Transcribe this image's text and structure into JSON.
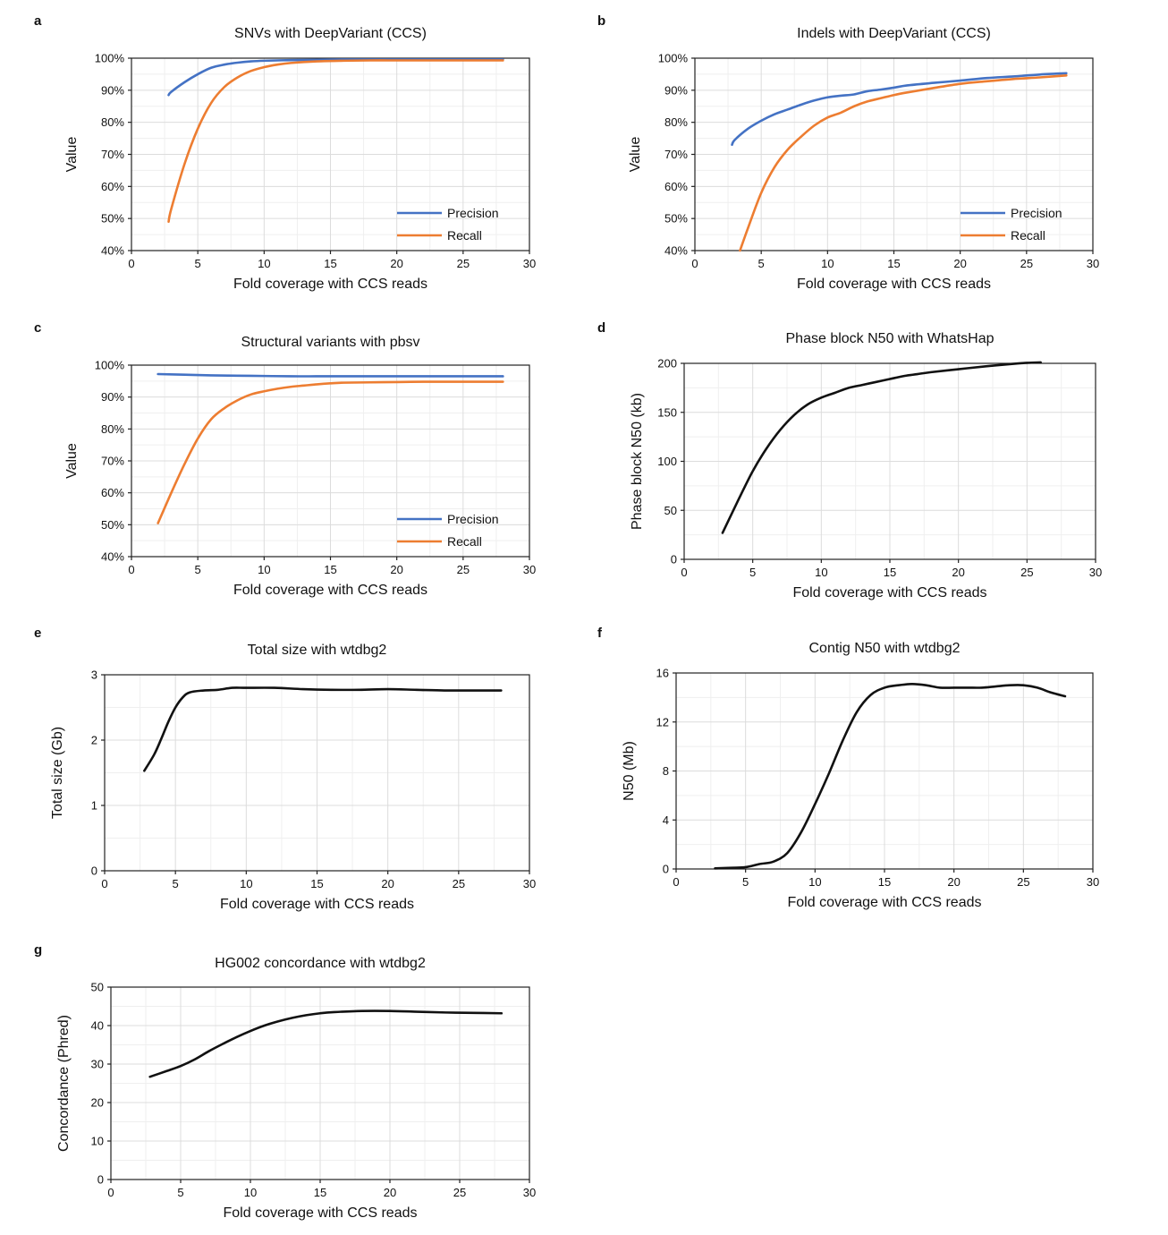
{
  "chart_data": [
    {
      "panel": "a",
      "type": "line",
      "title": "SNVs with DeepVariant (CCS)",
      "xlabel": "Fold coverage with CCS reads",
      "ylabel": "Value",
      "xlim": [
        0,
        30
      ],
      "ylim": [
        40,
        100
      ],
      "x_ticks": [
        0,
        5,
        10,
        15,
        20,
        25,
        30
      ],
      "y_ticks": [
        40,
        50,
        60,
        70,
        80,
        90,
        100
      ],
      "y_tick_labels": [
        "40%",
        "50%",
        "60%",
        "70%",
        "80%",
        "90%",
        "100%"
      ],
      "grid": true,
      "legend": "bottom-right",
      "series": [
        {
          "name": "Precision",
          "color": "#4472c4",
          "x": [
            2.8,
            3,
            4,
            5,
            6,
            7,
            8,
            9,
            10,
            12,
            14,
            16,
            18,
            20,
            22,
            24,
            26,
            28
          ],
          "y": [
            88.5,
            89.5,
            92.5,
            95,
            97,
            98,
            98.6,
            99.0,
            99.2,
            99.4,
            99.5,
            99.6,
            99.6,
            99.6,
            99.6,
            99.6,
            99.6,
            99.6
          ]
        },
        {
          "name": "Recall",
          "color": "#ed7d31",
          "x": [
            2.8,
            3,
            4,
            5,
            6,
            7,
            8,
            9,
            10,
            11,
            12,
            14,
            16,
            18,
            20,
            22,
            24,
            26,
            28
          ],
          "y": [
            49,
            53,
            67,
            78,
            86,
            91,
            94,
            96,
            97.2,
            98,
            98.5,
            99,
            99.2,
            99.3,
            99.3,
            99.3,
            99.3,
            99.3,
            99.3
          ]
        }
      ]
    },
    {
      "panel": "b",
      "type": "line",
      "title": "Indels with DeepVariant (CCS)",
      "xlabel": "Fold coverage with CCS reads",
      "ylabel": "Value",
      "xlim": [
        0,
        30
      ],
      "ylim": [
        40,
        100
      ],
      "x_ticks": [
        0,
        5,
        10,
        15,
        20,
        25,
        30
      ],
      "y_ticks": [
        40,
        50,
        60,
        70,
        80,
        90,
        100
      ],
      "y_tick_labels": [
        "40%",
        "50%",
        "60%",
        "70%",
        "80%",
        "90%",
        "100%"
      ],
      "grid": true,
      "legend": "bottom-right",
      "series": [
        {
          "name": "Precision",
          "color": "#4472c4",
          "x": [
            2.8,
            3,
            4,
            5,
            6,
            7,
            8,
            9,
            10,
            11,
            12,
            13,
            14,
            15,
            16,
            18,
            20,
            22,
            24,
            26,
            28
          ],
          "y": [
            73,
            74.5,
            78,
            80.5,
            82.5,
            84,
            85.5,
            86.8,
            87.8,
            88.3,
            88.7,
            89.7,
            90.2,
            90.8,
            91.5,
            92.3,
            93,
            93.8,
            94.3,
            94.9,
            95.3
          ]
        },
        {
          "name": "Recall",
          "color": "#ed7d31",
          "x": [
            3.4,
            4,
            5,
            6,
            7,
            8,
            9,
            10,
            11,
            12,
            13,
            14,
            15,
            16,
            18,
            20,
            22,
            24,
            26,
            28
          ],
          "y": [
            40,
            47,
            58,
            66,
            71.5,
            75.5,
            79,
            81.5,
            83,
            85,
            86.5,
            87.5,
            88.5,
            89.3,
            90.7,
            92,
            92.8,
            93.5,
            94,
            94.6
          ]
        }
      ]
    },
    {
      "panel": "c",
      "type": "line",
      "title": "Structural variants with pbsv",
      "xlabel": "Fold coverage with CCS reads",
      "ylabel": "Value",
      "xlim": [
        0,
        30
      ],
      "ylim": [
        40,
        100
      ],
      "x_ticks": [
        0,
        5,
        10,
        15,
        20,
        25,
        30
      ],
      "y_ticks": [
        40,
        50,
        60,
        70,
        80,
        90,
        100
      ],
      "y_tick_labels": [
        "40%",
        "50%",
        "60%",
        "70%",
        "80%",
        "90%",
        "100%"
      ],
      "grid": true,
      "legend": "bottom-right",
      "series": [
        {
          "name": "Precision",
          "color": "#4472c4",
          "x": [
            2,
            4,
            6,
            8,
            10,
            12,
            14,
            16,
            18,
            20,
            22,
            24,
            26,
            28
          ],
          "y": [
            97.2,
            97,
            96.8,
            96.7,
            96.6,
            96.5,
            96.5,
            96.5,
            96.5,
            96.5,
            96.5,
            96.5,
            96.5,
            96.5
          ]
        },
        {
          "name": "Recall",
          "color": "#ed7d31",
          "x": [
            2,
            3,
            4,
            5,
            6,
            7,
            8,
            9,
            10,
            11,
            12,
            13,
            14,
            15,
            16,
            18,
            20,
            22,
            24,
            26,
            28
          ],
          "y": [
            50.5,
            60,
            69,
            77,
            83,
            86.5,
            89,
            90.8,
            91.8,
            92.6,
            93.2,
            93.6,
            94,
            94.3,
            94.5,
            94.6,
            94.7,
            94.8,
            94.8,
            94.8,
            94.8
          ]
        }
      ]
    },
    {
      "panel": "d",
      "type": "line",
      "title": "Phase block N50 with WhatsHap",
      "xlabel": "Fold coverage with CCS reads",
      "ylabel": "Phase block N50 (kb)",
      "xlim": [
        0,
        30
      ],
      "ylim": [
        0,
        200
      ],
      "x_ticks": [
        0,
        5,
        10,
        15,
        20,
        25,
        30
      ],
      "y_ticks": [
        0,
        50,
        100,
        150,
        200
      ],
      "y_tick_labels": [
        "0",
        "50",
        "100",
        "150",
        "200"
      ],
      "grid": true,
      "legend": "none",
      "series": [
        {
          "name": "",
          "color": "#111111",
          "x": [
            2.8,
            4,
            5,
            6,
            7,
            8,
            9,
            10,
            11,
            12,
            13,
            14,
            15,
            16,
            17,
            18,
            20,
            22,
            24,
            25,
            26
          ],
          "y": [
            27,
            62,
            90,
            113,
            132,
            147,
            158,
            165,
            170,
            175,
            178,
            181,
            184,
            187,
            189,
            191,
            194,
            197,
            199.5,
            200.5,
            201
          ]
        }
      ]
    },
    {
      "panel": "e",
      "type": "line",
      "title": "Total size with wtdbg2",
      "xlabel": "Fold coverage with CCS reads",
      "ylabel": "Total size (Gb)",
      "xlim": [
        0,
        30
      ],
      "ylim": [
        0,
        3
      ],
      "x_ticks": [
        0,
        5,
        10,
        15,
        20,
        25,
        30
      ],
      "y_ticks": [
        0,
        1,
        2,
        3
      ],
      "y_tick_labels": [
        "0",
        "1",
        "2",
        "3"
      ],
      "grid": true,
      "legend": "none",
      "series": [
        {
          "name": "",
          "color": "#111111",
          "x": [
            2.8,
            3.5,
            4,
            4.5,
            5,
            5.5,
            6,
            7,
            8,
            9,
            10,
            12,
            14,
            16,
            18,
            20,
            22,
            24,
            26,
            28
          ],
          "y": [
            1.53,
            1.78,
            2.02,
            2.28,
            2.5,
            2.65,
            2.73,
            2.76,
            2.77,
            2.8,
            2.8,
            2.8,
            2.78,
            2.77,
            2.77,
            2.78,
            2.77,
            2.76,
            2.76,
            2.76
          ]
        }
      ]
    },
    {
      "panel": "f",
      "type": "line",
      "title": "Contig N50 with wtdbg2",
      "xlabel": "Fold coverage with CCS reads",
      "ylabel": "N50 (Mb)",
      "xlim": [
        0,
        30
      ],
      "ylim": [
        0,
        16
      ],
      "x_ticks": [
        0,
        5,
        10,
        15,
        20,
        25,
        30
      ],
      "y_ticks": [
        0,
        4,
        8,
        12,
        16
      ],
      "y_tick_labels": [
        "0",
        "4",
        "8",
        "12",
        "16"
      ],
      "grid": true,
      "legend": "none",
      "series": [
        {
          "name": "",
          "color": "#111111",
          "x": [
            2.8,
            4,
            5,
            6,
            7,
            8,
            9,
            10,
            11,
            12,
            13,
            14,
            15,
            16,
            17,
            18,
            19,
            20,
            21,
            22,
            23,
            24,
            25,
            26,
            27,
            28
          ],
          "y": [
            0.05,
            0.1,
            0.15,
            0.4,
            0.6,
            1.3,
            3.0,
            5.3,
            7.8,
            10.5,
            12.8,
            14.2,
            14.8,
            15.0,
            15.1,
            15.0,
            14.8,
            14.8,
            14.8,
            14.8,
            14.9,
            15.0,
            15.0,
            14.8,
            14.4,
            14.1
          ]
        }
      ]
    },
    {
      "panel": "g",
      "type": "line",
      "title": "HG002 concordance with wtdbg2",
      "xlabel": "Fold coverage with CCS reads",
      "ylabel": "Concordance (Phred)",
      "xlim": [
        0,
        30
      ],
      "ylim": [
        0,
        50
      ],
      "x_ticks": [
        0,
        5,
        10,
        15,
        20,
        25,
        30
      ],
      "y_ticks": [
        0,
        10,
        20,
        30,
        40,
        50
      ],
      "y_tick_labels": [
        "0",
        "10",
        "20",
        "30",
        "40",
        "50"
      ],
      "grid": true,
      "legend": "none",
      "series": [
        {
          "name": "",
          "color": "#111111",
          "x": [
            2.8,
            4,
            5,
            6,
            7,
            8,
            9,
            10,
            11,
            12,
            13,
            14,
            15,
            16,
            18,
            20,
            22,
            24,
            26,
            28
          ],
          "y": [
            26.7,
            28.2,
            29.5,
            31.2,
            33.3,
            35.2,
            37,
            38.6,
            40,
            41.1,
            42,
            42.7,
            43.2,
            43.5,
            43.8,
            43.8,
            43.6,
            43.4,
            43.3,
            43.2
          ]
        }
      ]
    }
  ]
}
